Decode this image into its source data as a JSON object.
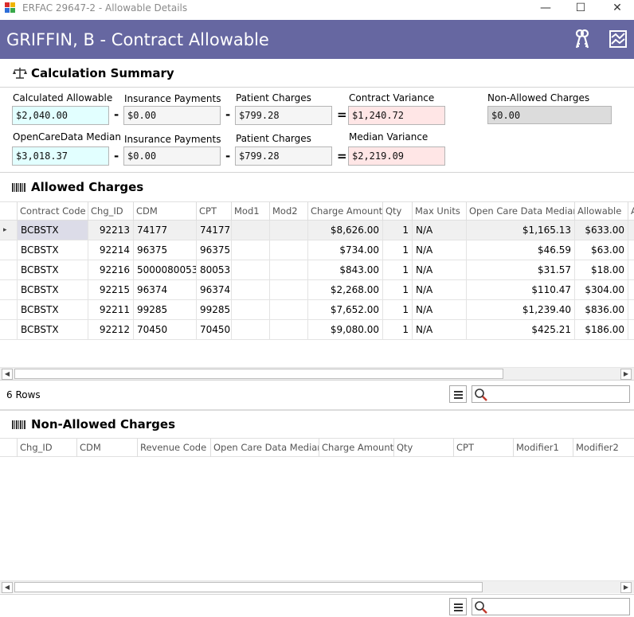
{
  "window": {
    "title": "ERFAC 29647-2 - Allowable Details",
    "minimize_glyph": "—",
    "maximize_glyph": "☐",
    "close_glyph": "✕"
  },
  "header": {
    "title": "GRIFFIN, B - Contract Allowable",
    "icons": [
      "keys-icon",
      "chart-image-icon"
    ]
  },
  "calc": {
    "title": "Calculation Summary",
    "icon": "scales-icon",
    "row1": {
      "calc_allowable_label": "Calculated Allowable",
      "calc_allowable_value": "$2,040.00",
      "ins_payments_label": "Insurance Payments",
      "ins_payments_value": "$0.00",
      "patient_charges_label": "Patient Charges",
      "patient_charges_value": "$799.28",
      "contract_variance_label": "Contract Variance",
      "contract_variance_value": "$1,240.72",
      "non_allowed_label": "Non-Allowed Charges",
      "non_allowed_value": "$0.00"
    },
    "row2": {
      "ocd_median_label": "OpenCareData Median",
      "ocd_median_value": "$3,018.37",
      "ins_payments_label": "Insurance Payments",
      "ins_payments_value": "$0.00",
      "patient_charges_label": "Patient Charges",
      "patient_charges_value": "$799.28",
      "median_variance_label": "Median Variance",
      "median_variance_value": "$2,219.09"
    },
    "minus": "-",
    "equals": "="
  },
  "allowed": {
    "title": "Allowed Charges",
    "icon": "barcode-icon",
    "columns": [
      "Contract Code",
      "Chg_ID",
      "CDM",
      "CPT",
      "Mod1",
      "Mod2",
      "Charge Amount",
      "Qty",
      "Max Units",
      "Open Care Data Median",
      "Allowable",
      "A"
    ],
    "rows": [
      [
        "BCBSTX",
        "92213",
        "74177",
        "74177",
        "",
        "",
        "$8,626.00",
        "1",
        "N/A",
        "$1,165.13",
        "$633.00"
      ],
      [
        "BCBSTX",
        "92214",
        "96375",
        "96375",
        "",
        "",
        "$734.00",
        "1",
        "N/A",
        "$46.59",
        "$63.00"
      ],
      [
        "BCBSTX",
        "92216",
        "5000080053",
        "80053",
        "",
        "",
        "$843.00",
        "1",
        "N/A",
        "$31.57",
        "$18.00"
      ],
      [
        "BCBSTX",
        "92215",
        "96374",
        "96374",
        "",
        "",
        "$2,268.00",
        "1",
        "N/A",
        "$110.47",
        "$304.00"
      ],
      [
        "BCBSTX",
        "92211",
        "99285",
        "99285",
        "",
        "",
        "$7,652.00",
        "1",
        "N/A",
        "$1,239.40",
        "$836.00"
      ],
      [
        "BCBSTX",
        "92212",
        "70450",
        "70450",
        "",
        "",
        "$9,080.00",
        "1",
        "N/A",
        "$425.21",
        "$186.00"
      ]
    ],
    "row_count": "6 Rows",
    "selected_row_marker": "▸"
  },
  "non_allowed": {
    "title": "Non-Allowed Charges",
    "icon": "barcode-icon",
    "columns": [
      "Chg_ID",
      "CDM",
      "Revenue Code",
      "Open Care Data Median",
      "Charge Amount",
      "Qty",
      "CPT",
      "Modifier1",
      "Modifier2"
    ]
  },
  "scroll": {
    "left": "◀",
    "right": "▶"
  },
  "search": {
    "icon": "search-icon"
  },
  "colors": {
    "header_band": "#6667a1",
    "cyan_field": "#e2ffff",
    "pink_field": "#ffe6e6",
    "gray_field": "#dcdcdc"
  }
}
